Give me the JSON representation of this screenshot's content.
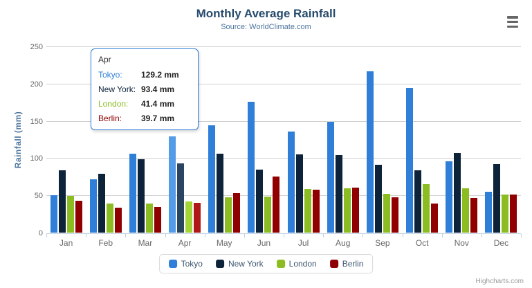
{
  "chart": {
    "title": "Monthly Average Rainfall",
    "subtitle": "Source: WorldClimate.com",
    "ylabel": "Rainfall (mm)",
    "credits": "Highcharts.com",
    "menu_icon": "hamburger-icon",
    "colors": {
      "title": "#274b6d",
      "subtitle": "#4d759e",
      "axis_labels": "#666666",
      "gridline": "#d0d0d0",
      "axis_line": "#C0D0E0",
      "legend_text": "#3E576F"
    }
  },
  "chart_data": {
    "type": "bar",
    "title": "Monthly Average Rainfall",
    "subtitle": "Source: WorldClimate.com",
    "xlabel": "",
    "ylabel": "Rainfall (mm)",
    "ylim": [
      0,
      250
    ],
    "yticks": [
      0,
      50,
      100,
      150,
      200,
      250
    ],
    "grid": true,
    "legend_position": "bottom",
    "hover_category": "Apr",
    "categories": [
      "Jan",
      "Feb",
      "Mar",
      "Apr",
      "May",
      "Jun",
      "Jul",
      "Aug",
      "Sep",
      "Oct",
      "Nov",
      "Dec"
    ],
    "series": [
      {
        "name": "Tokyo",
        "color": "#2f7ed8",
        "hover_color": "#549be8",
        "values": [
          49.9,
          71.5,
          106.4,
          129.2,
          144.0,
          176.0,
          135.6,
          148.5,
          216.4,
          194.1,
          95.6,
          54.4
        ]
      },
      {
        "name": "New York",
        "color": "#0d233a",
        "hover_color": "#2a4560",
        "values": [
          83.6,
          78.8,
          98.5,
          93.4,
          106.0,
          84.5,
          105.0,
          104.3,
          91.2,
          83.5,
          106.6,
          92.3
        ]
      },
      {
        "name": "London",
        "color": "#8bbc21",
        "hover_color": "#a5d437",
        "values": [
          48.9,
          38.8,
          39.3,
          41.4,
          47.0,
          48.3,
          59.0,
          59.6,
          52.4,
          65.2,
          59.3,
          51.2
        ]
      },
      {
        "name": "Berlin",
        "color": "#910000",
        "hover_color": "#b01717",
        "values": [
          42.4,
          33.2,
          34.5,
          39.7,
          52.6,
          75.5,
          57.4,
          60.4,
          47.6,
          39.1,
          46.8,
          51.1
        ]
      }
    ]
  },
  "tooltip": {
    "header": "Apr",
    "rows": [
      {
        "label": "Tokyo:",
        "value": "129.2 mm",
        "color": "#2f7ed8"
      },
      {
        "label": "New York:",
        "value": "93.4 mm",
        "color": "#0d233a"
      },
      {
        "label": "London:",
        "value": "41.4 mm",
        "color": "#8bbc21"
      },
      {
        "label": "Berlin:",
        "value": "39.7 mm",
        "color": "#910000"
      }
    ]
  }
}
